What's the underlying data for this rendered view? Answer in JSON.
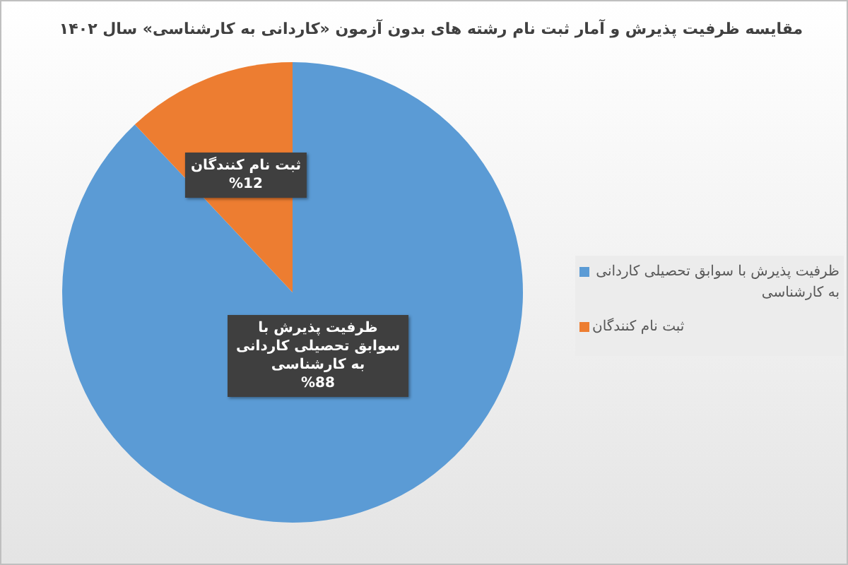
{
  "chart_data": {
    "type": "pie",
    "title": "مقایسه ظرفیت پذیرش و آمار ثبت نام رشته های بدون آزمون «کاردانی به کارشناسی» سال ۱۴۰۲",
    "categories": [
      "ظرفیت پذیرش با سوابق تحصیلی کاردانی به کارشناسی",
      "ثبت نام کنندگان"
    ],
    "values": [
      88,
      12
    ],
    "colors": [
      "#5b9bd5",
      "#ed7d31"
    ],
    "value_labels": [
      "%88",
      "%12"
    ],
    "legend": "right"
  }
}
